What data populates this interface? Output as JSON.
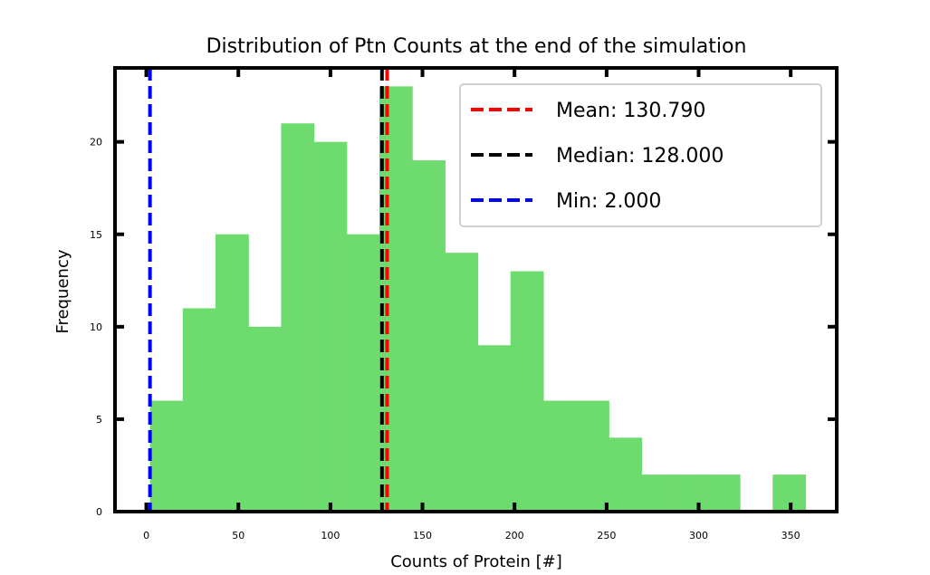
{
  "chart_data": {
    "type": "bar",
    "title": "Distribution of Ptn Counts at the end of the simulation",
    "xlabel": "Counts of Protein [#]",
    "ylabel": "Frequency",
    "xlim": [
      -17,
      375
    ],
    "ylim": [
      0,
      24
    ],
    "xticks": [
      0,
      50,
      100,
      150,
      200,
      250,
      300,
      350
    ],
    "yticks": [
      0,
      5,
      10,
      15,
      20
    ],
    "bar_color": "#6edb6e",
    "bins": [
      {
        "start": 2.0,
        "end": 19.8,
        "count": 6
      },
      {
        "start": 19.8,
        "end": 37.6,
        "count": 11
      },
      {
        "start": 37.6,
        "end": 55.4,
        "count": 15
      },
      {
        "start": 55.4,
        "end": 73.2,
        "count": 10
      },
      {
        "start": 73.2,
        "end": 91.0,
        "count": 21
      },
      {
        "start": 91.0,
        "end": 108.8,
        "count": 20
      },
      {
        "start": 108.8,
        "end": 126.6,
        "count": 15
      },
      {
        "start": 126.6,
        "end": 144.4,
        "count": 23
      },
      {
        "start": 144.4,
        "end": 162.2,
        "count": 19
      },
      {
        "start": 162.2,
        "end": 180.0,
        "count": 14
      },
      {
        "start": 180.0,
        "end": 197.8,
        "count": 9
      },
      {
        "start": 197.8,
        "end": 215.6,
        "count": 13
      },
      {
        "start": 215.6,
        "end": 233.4,
        "count": 6
      },
      {
        "start": 233.4,
        "end": 251.2,
        "count": 6
      },
      {
        "start": 251.2,
        "end": 269.0,
        "count": 4
      },
      {
        "start": 269.0,
        "end": 286.8,
        "count": 2
      },
      {
        "start": 286.8,
        "end": 304.6,
        "count": 2
      },
      {
        "start": 304.6,
        "end": 322.4,
        "count": 2
      },
      {
        "start": 322.4,
        "end": 340.2,
        "count": 0
      },
      {
        "start": 340.2,
        "end": 358.0,
        "count": 2
      }
    ],
    "vlines": [
      {
        "label": "Mean: 130.790",
        "value": 130.79,
        "color": "#ff0000"
      },
      {
        "label": "Median: 128.000",
        "value": 128.0,
        "color": "#000000"
      },
      {
        "label": "Min: 2.000",
        "value": 2.0,
        "color": "#0000ff"
      }
    ],
    "legend_position": "top-right",
    "grid": false
  }
}
